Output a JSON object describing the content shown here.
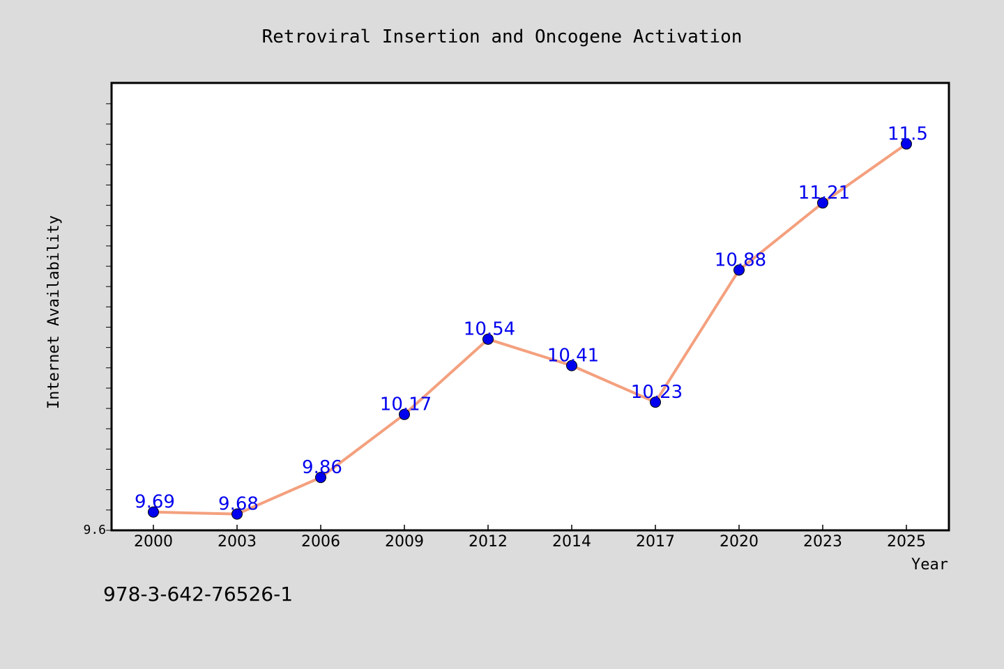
{
  "chart_data": {
    "type": "line",
    "title": "Retroviral Insertion and Oncogene Activation",
    "xlabel": "Year",
    "ylabel": "Internet Availability",
    "categories": [
      "2000",
      "2003",
      "2006",
      "2009",
      "2012",
      "2014",
      "2017",
      "2020",
      "2023",
      "2025"
    ],
    "series": [
      {
        "values": [
          9.69,
          9.68,
          9.86,
          10.17,
          10.54,
          10.41,
          10.23,
          10.88,
          11.21,
          11.5
        ],
        "labels": [
          "9.69",
          "9.68",
          "9.86",
          "10.17",
          "10.54",
          "10.41",
          "10.23",
          "10.88",
          "11.21",
          "11.5"
        ],
        "line_color": "#f4a07e",
        "marker_color": "#0000ee",
        "label_color": "#0000ee"
      }
    ],
    "y_tick_labels": [
      "9.6"
    ],
    "ylim": [
      9.6,
      11.8
    ],
    "grid": false,
    "annotation": "978-3-642-76526-1"
  },
  "colors": {
    "figure_background": "#dcdcdc",
    "plot_background": "#ffffff",
    "axes_frame": "#000000"
  }
}
